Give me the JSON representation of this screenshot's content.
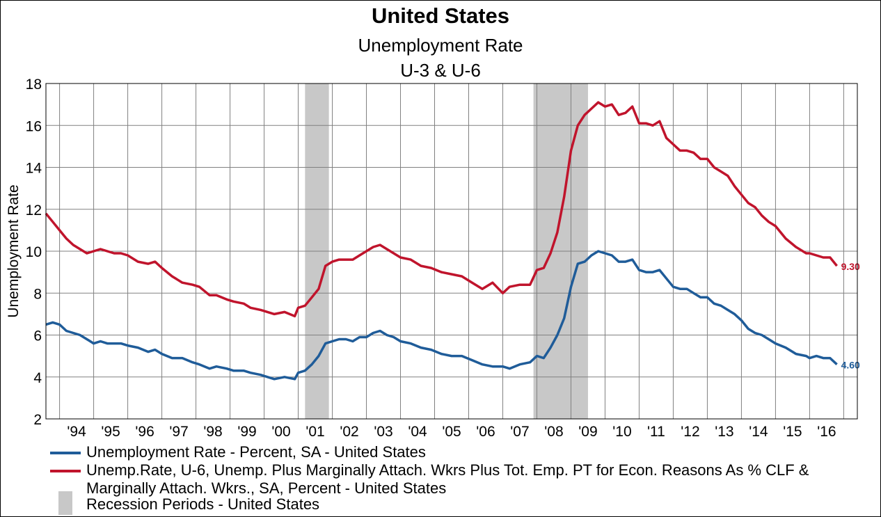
{
  "chart_data": {
    "type": "line",
    "title": "United States",
    "subtitle": "Unemployment Rate",
    "subtitle2": "U-3 & U-6",
    "ylabel": "Unemployment Rate",
    "xlabel": "",
    "ylim": [
      2,
      18
    ],
    "yticks": [
      2,
      4,
      6,
      8,
      10,
      12,
      14,
      16,
      18
    ],
    "xlim": [
      1993.6,
      2017.4
    ],
    "xtick_labels": [
      "'94",
      "'95",
      "'96",
      "'97",
      "'98",
      "'99",
      "'00",
      "'01",
      "'02",
      "'03",
      "'04",
      "'05",
      "'06",
      "'07",
      "'08",
      "'09",
      "'10",
      "'11",
      "'12",
      "'13",
      "'14",
      "'15",
      "'16"
    ],
    "grid": true,
    "legend_position": "bottom",
    "recessions": [
      {
        "start": 2001.2,
        "end": 2001.9
      },
      {
        "start": 2007.9,
        "end": 2009.5
      }
    ],
    "recession_label": "Recession Periods - United States",
    "series": [
      {
        "name": "Unemployment Rate - Percent, SA - United States",
        "color": "#1f5c99",
        "end_label": "4.60",
        "x": [
          1993.6,
          1993.8,
          1994.0,
          1994.2,
          1994.4,
          1994.6,
          1994.8,
          1995.0,
          1995.2,
          1995.4,
          1995.6,
          1995.8,
          1996.0,
          1996.3,
          1996.6,
          1996.8,
          1997.0,
          1997.3,
          1997.6,
          1997.9,
          1998.1,
          1998.4,
          1998.6,
          1998.9,
          1999.1,
          1999.4,
          1999.6,
          1999.9,
          2000.1,
          2000.3,
          2000.6,
          2000.9,
          2001.0,
          2001.2,
          2001.4,
          2001.6,
          2001.8,
          2002.0,
          2002.2,
          2002.4,
          2002.6,
          2002.8,
          2003.0,
          2003.2,
          2003.4,
          2003.6,
          2003.8,
          2004.0,
          2004.3,
          2004.6,
          2004.9,
          2005.2,
          2005.5,
          2005.8,
          2006.1,
          2006.4,
          2006.7,
          2007.0,
          2007.2,
          2007.5,
          2007.8,
          2008.0,
          2008.2,
          2008.4,
          2008.6,
          2008.8,
          2009.0,
          2009.2,
          2009.4,
          2009.6,
          2009.8,
          2010.0,
          2010.2,
          2010.4,
          2010.6,
          2010.8,
          2011.0,
          2011.2,
          2011.4,
          2011.6,
          2011.8,
          2012.0,
          2012.2,
          2012.4,
          2012.6,
          2012.8,
          2013.0,
          2013.2,
          2013.4,
          2013.6,
          2013.8,
          2014.0,
          2014.2,
          2014.4,
          2014.6,
          2014.8,
          2015.0,
          2015.3,
          2015.6,
          2015.9,
          2016.0,
          2016.2,
          2016.4,
          2016.6,
          2016.8
        ],
        "y": [
          6.5,
          6.6,
          6.5,
          6.2,
          6.1,
          6.0,
          5.8,
          5.6,
          5.7,
          5.6,
          5.6,
          5.6,
          5.5,
          5.4,
          5.2,
          5.3,
          5.1,
          4.9,
          4.9,
          4.7,
          4.6,
          4.4,
          4.5,
          4.4,
          4.3,
          4.3,
          4.2,
          4.1,
          4.0,
          3.9,
          4.0,
          3.9,
          4.2,
          4.3,
          4.6,
          5.0,
          5.6,
          5.7,
          5.8,
          5.8,
          5.7,
          5.9,
          5.9,
          6.1,
          6.2,
          6.0,
          5.9,
          5.7,
          5.6,
          5.4,
          5.3,
          5.1,
          5.0,
          5.0,
          4.8,
          4.6,
          4.5,
          4.5,
          4.4,
          4.6,
          4.7,
          5.0,
          4.9,
          5.4,
          6.0,
          6.8,
          8.3,
          9.4,
          9.5,
          9.8,
          10.0,
          9.9,
          9.8,
          9.5,
          9.5,
          9.6,
          9.1,
          9.0,
          9.0,
          9.1,
          8.7,
          8.3,
          8.2,
          8.2,
          8.0,
          7.8,
          7.8,
          7.5,
          7.4,
          7.2,
          7.0,
          6.7,
          6.3,
          6.1,
          6.0,
          5.8,
          5.6,
          5.4,
          5.1,
          5.0,
          4.9,
          5.0,
          4.9,
          4.9,
          4.6
        ]
      },
      {
        "name": "Unemp.Rate, U-6, Unemp. Plus Marginally Attach. Wkrs Plus Tot. Emp. PT for Econ. Reasons As % CLF & Marginally Attach. Wkrs., SA, Percent - United States",
        "color": "#c0142c",
        "end_label": "9.30",
        "x": [
          1993.6,
          1993.8,
          1994.0,
          1994.2,
          1994.4,
          1994.6,
          1994.8,
          1995.0,
          1995.2,
          1995.4,
          1995.6,
          1995.8,
          1996.0,
          1996.3,
          1996.6,
          1996.8,
          1997.0,
          1997.3,
          1997.6,
          1997.9,
          1998.1,
          1998.4,
          1998.6,
          1998.9,
          1999.1,
          1999.4,
          1999.6,
          1999.9,
          2000.1,
          2000.3,
          2000.6,
          2000.9,
          2001.0,
          2001.2,
          2001.4,
          2001.6,
          2001.8,
          2002.0,
          2002.2,
          2002.4,
          2002.6,
          2002.8,
          2003.0,
          2003.2,
          2003.4,
          2003.6,
          2003.8,
          2004.0,
          2004.3,
          2004.6,
          2004.9,
          2005.2,
          2005.5,
          2005.8,
          2006.1,
          2006.4,
          2006.7,
          2007.0,
          2007.2,
          2007.5,
          2007.8,
          2008.0,
          2008.2,
          2008.4,
          2008.6,
          2008.8,
          2009.0,
          2009.2,
          2009.4,
          2009.6,
          2009.8,
          2010.0,
          2010.2,
          2010.4,
          2010.6,
          2010.8,
          2011.0,
          2011.2,
          2011.4,
          2011.6,
          2011.8,
          2012.0,
          2012.2,
          2012.4,
          2012.6,
          2012.8,
          2013.0,
          2013.2,
          2013.4,
          2013.6,
          2013.8,
          2014.0,
          2014.2,
          2014.4,
          2014.6,
          2014.8,
          2015.0,
          2015.3,
          2015.6,
          2015.9,
          2016.0,
          2016.2,
          2016.4,
          2016.6,
          2016.8
        ],
        "y": [
          11.8,
          11.4,
          11.0,
          10.6,
          10.3,
          10.1,
          9.9,
          10.0,
          10.1,
          10.0,
          9.9,
          9.9,
          9.8,
          9.5,
          9.4,
          9.5,
          9.2,
          8.8,
          8.5,
          8.4,
          8.3,
          7.9,
          7.9,
          7.7,
          7.6,
          7.5,
          7.3,
          7.2,
          7.1,
          7.0,
          7.1,
          6.9,
          7.3,
          7.4,
          7.8,
          8.2,
          9.3,
          9.5,
          9.6,
          9.6,
          9.6,
          9.8,
          10.0,
          10.2,
          10.3,
          10.1,
          9.9,
          9.7,
          9.6,
          9.3,
          9.2,
          9.0,
          8.9,
          8.8,
          8.5,
          8.2,
          8.5,
          8.0,
          8.3,
          8.4,
          8.4,
          9.1,
          9.2,
          9.9,
          10.9,
          12.6,
          14.8,
          16.0,
          16.5,
          16.8,
          17.1,
          16.9,
          17.0,
          16.5,
          16.6,
          16.9,
          16.1,
          16.1,
          16.0,
          16.2,
          15.4,
          15.1,
          14.8,
          14.8,
          14.7,
          14.4,
          14.4,
          14.0,
          13.8,
          13.6,
          13.1,
          12.7,
          12.3,
          12.1,
          11.7,
          11.4,
          11.2,
          10.6,
          10.2,
          9.9,
          9.9,
          9.8,
          9.7,
          9.7,
          9.3
        ]
      }
    ]
  }
}
